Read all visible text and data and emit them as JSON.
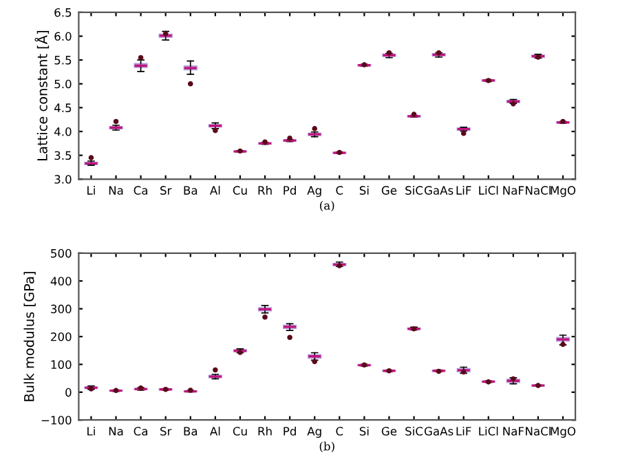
{
  "chart_data": [
    {
      "type": "box",
      "ylabel": "Lattice constant [Å]",
      "annotations": [
        "(a)"
      ],
      "ylim": [
        3.0,
        6.5
      ],
      "yticks": [
        {
          "value": 3,
          "label": "3.0"
        },
        3.5,
        {
          "value": 4,
          "label": "4.0"
        },
        4.5,
        {
          "value": 5,
          "label": "5.0"
        },
        5.5,
        {
          "value": 6,
          "label": "6.0"
        },
        6.5
      ],
      "grid": false,
      "categories": [
        "Li",
        "Na",
        "Ca",
        "Sr",
        "Ba",
        "Al",
        "Cu",
        "Rh",
        "Pd",
        "Ag",
        "C",
        "Si",
        "Ge",
        "SiC",
        "GaAs",
        "LiF",
        "LiCl",
        "NaF",
        "NaCl",
        "MgO"
      ],
      "series": [
        {
          "type": "box",
          "color": "#8a5fd1",
          "boxes": [
            {
              "low": 3.29,
              "q1": 3.31,
              "median": 3.33,
              "q3": 3.35,
              "high": 3.38
            },
            {
              "low": 4.03,
              "q1": 4.06,
              "median": 4.08,
              "q3": 4.1,
              "high": 4.13
            },
            {
              "low": 5.26,
              "q1": 5.35,
              "median": 5.38,
              "q3": 5.42,
              "high": 5.5
            },
            {
              "low": 5.92,
              "q1": 5.98,
              "median": 6.01,
              "q3": 6.04,
              "high": 6.1
            },
            {
              "low": 5.2,
              "q1": 5.3,
              "median": 5.33,
              "q3": 5.37,
              "high": 5.48
            },
            {
              "low": 4.06,
              "q1": 4.1,
              "median": 4.12,
              "q3": 4.14,
              "high": 4.18
            },
            {
              "low": 3.57,
              "q1": 3.58,
              "median": 3.58,
              "q3": 3.59,
              "high": 3.6
            },
            {
              "low": 3.73,
              "q1": 3.74,
              "median": 3.75,
              "q3": 3.76,
              "high": 3.77
            },
            {
              "low": 3.79,
              "q1": 3.8,
              "median": 3.81,
              "q3": 3.82,
              "high": 3.83
            },
            {
              "low": 3.89,
              "q1": 3.92,
              "median": 3.94,
              "q3": 3.96,
              "high": 3.99
            },
            {
              "low": 3.54,
              "q1": 3.55,
              "median": 3.55,
              "q3": 3.56,
              "high": 3.57
            },
            {
              "low": 5.37,
              "q1": 5.38,
              "median": 5.39,
              "q3": 5.4,
              "high": 5.41
            },
            {
              "low": 5.55,
              "q1": 5.58,
              "median": 5.6,
              "q3": 5.62,
              "high": 5.64
            },
            {
              "low": 4.3,
              "q1": 4.31,
              "median": 4.32,
              "q3": 4.33,
              "high": 4.34
            },
            {
              "low": 5.56,
              "q1": 5.59,
              "median": 5.61,
              "q3": 5.63,
              "high": 5.65
            },
            {
              "low": 4.01,
              "q1": 4.03,
              "median": 4.05,
              "q3": 4.07,
              "high": 4.09
            },
            {
              "low": 5.05,
              "q1": 5.06,
              "median": 5.07,
              "q3": 5.08,
              "high": 5.09
            },
            {
              "low": 4.59,
              "q1": 4.61,
              "median": 4.63,
              "q3": 4.65,
              "high": 4.67
            },
            {
              "low": 5.54,
              "q1": 5.56,
              "median": 5.58,
              "q3": 5.6,
              "high": 5.62
            },
            {
              "low": 4.17,
              "q1": 4.18,
              "median": 4.19,
              "q3": 4.2,
              "high": 4.21
            }
          ]
        },
        {
          "type": "scatter",
          "color": "#5a0a1a",
          "x": [
            "Li",
            "Na",
            "Ca",
            "Sr",
            "Ba",
            "Al",
            "Cu",
            "Rh",
            "Pd",
            "Ag",
            "C",
            "Si",
            "Ge",
            "SiC",
            "GaAs",
            "LiF",
            "LiCl",
            "NaF",
            "NaCl",
            "MgO"
          ],
          "values": [
            3.45,
            4.21,
            5.55,
            6.05,
            5.0,
            4.02,
            3.59,
            3.78,
            3.86,
            4.06,
            3.56,
            5.4,
            5.65,
            4.36,
            5.65,
            3.96,
            5.07,
            4.58,
            5.56,
            4.21
          ]
        }
      ]
    },
    {
      "type": "box",
      "ylabel": "Bulk modulus [GPa]",
      "annotations": [
        "(b)"
      ],
      "ylim": [
        -100,
        500
      ],
      "yticks": [
        {
          "value": -100,
          "label": "−100"
        },
        0,
        100,
        200,
        300,
        400,
        500
      ],
      "grid": false,
      "categories": [
        "Li",
        "Na",
        "Ca",
        "Sr",
        "Ba",
        "Al",
        "Cu",
        "Rh",
        "Pd",
        "Ag",
        "C",
        "Si",
        "Ge",
        "SiC",
        "GaAs",
        "LiF",
        "LiCl",
        "NaF",
        "NaCl",
        "MgO"
      ],
      "series": [
        {
          "type": "box",
          "color": "#8a5fd1",
          "boxes": [
            {
              "low": 10,
              "q1": 14,
              "median": 16,
              "q3": 18,
              "high": 22
            },
            {
              "low": 3,
              "q1": 5,
              "median": 5.5,
              "q3": 6,
              "high": 8
            },
            {
              "low": 7,
              "q1": 10,
              "median": 11,
              "q3": 13,
              "high": 16
            },
            {
              "low": 7,
              "q1": 9,
              "median": 10,
              "q3": 11,
              "high": 13
            },
            {
              "low": 1,
              "q1": 2,
              "median": 3,
              "q3": 4,
              "high": 6
            },
            {
              "low": 48,
              "q1": 53,
              "median": 56,
              "q3": 60,
              "high": 64
            },
            {
              "low": 142,
              "q1": 146,
              "median": 149,
              "q3": 152,
              "high": 156
            },
            {
              "low": 285,
              "q1": 293,
              "median": 298,
              "q3": 303,
              "high": 312
            },
            {
              "low": 222,
              "q1": 230,
              "median": 235,
              "q3": 240,
              "high": 246
            },
            {
              "low": 115,
              "q1": 123,
              "median": 129,
              "q3": 134,
              "high": 142
            },
            {
              "low": 452,
              "q1": 456,
              "median": 459,
              "q3": 462,
              "high": 468
            },
            {
              "low": 94,
              "q1": 96,
              "median": 97,
              "q3": 99,
              "high": 100
            },
            {
              "low": 74,
              "q1": 76,
              "median": 77,
              "q3": 78,
              "high": 80
            },
            {
              "low": 224,
              "q1": 226,
              "median": 228,
              "q3": 230,
              "high": 234
            },
            {
              "low": 74,
              "q1": 76,
              "median": 77,
              "q3": 78,
              "high": 80
            },
            {
              "low": 68,
              "q1": 74,
              "median": 79,
              "q3": 84,
              "high": 90
            },
            {
              "low": 35,
              "q1": 37,
              "median": 38,
              "q3": 39,
              "high": 41
            },
            {
              "low": 30,
              "q1": 36,
              "median": 41,
              "q3": 46,
              "high": 52
            },
            {
              "low": 22,
              "q1": 23,
              "median": 24,
              "q3": 25,
              "high": 26
            },
            {
              "low": 170,
              "q1": 184,
              "median": 190,
              "q3": 196,
              "high": 205
            }
          ]
        },
        {
          "type": "scatter",
          "color": "#5a0a1a",
          "x": [
            "Li",
            "Na",
            "Ca",
            "Sr",
            "Ba",
            "Al",
            "Cu",
            "Rh",
            "Pd",
            "Ag",
            "C",
            "Si",
            "Ge",
            "SiC",
            "GaAs",
            "LiF",
            "LiCl",
            "NaF",
            "NaCl",
            "MgO"
          ],
          "values": [
            12,
            6,
            15,
            10,
            7,
            80,
            143,
            270,
            197,
            110,
            455,
            98,
            77,
            228,
            75,
            73,
            37,
            48,
            24,
            172
          ]
        }
      ]
    }
  ]
}
